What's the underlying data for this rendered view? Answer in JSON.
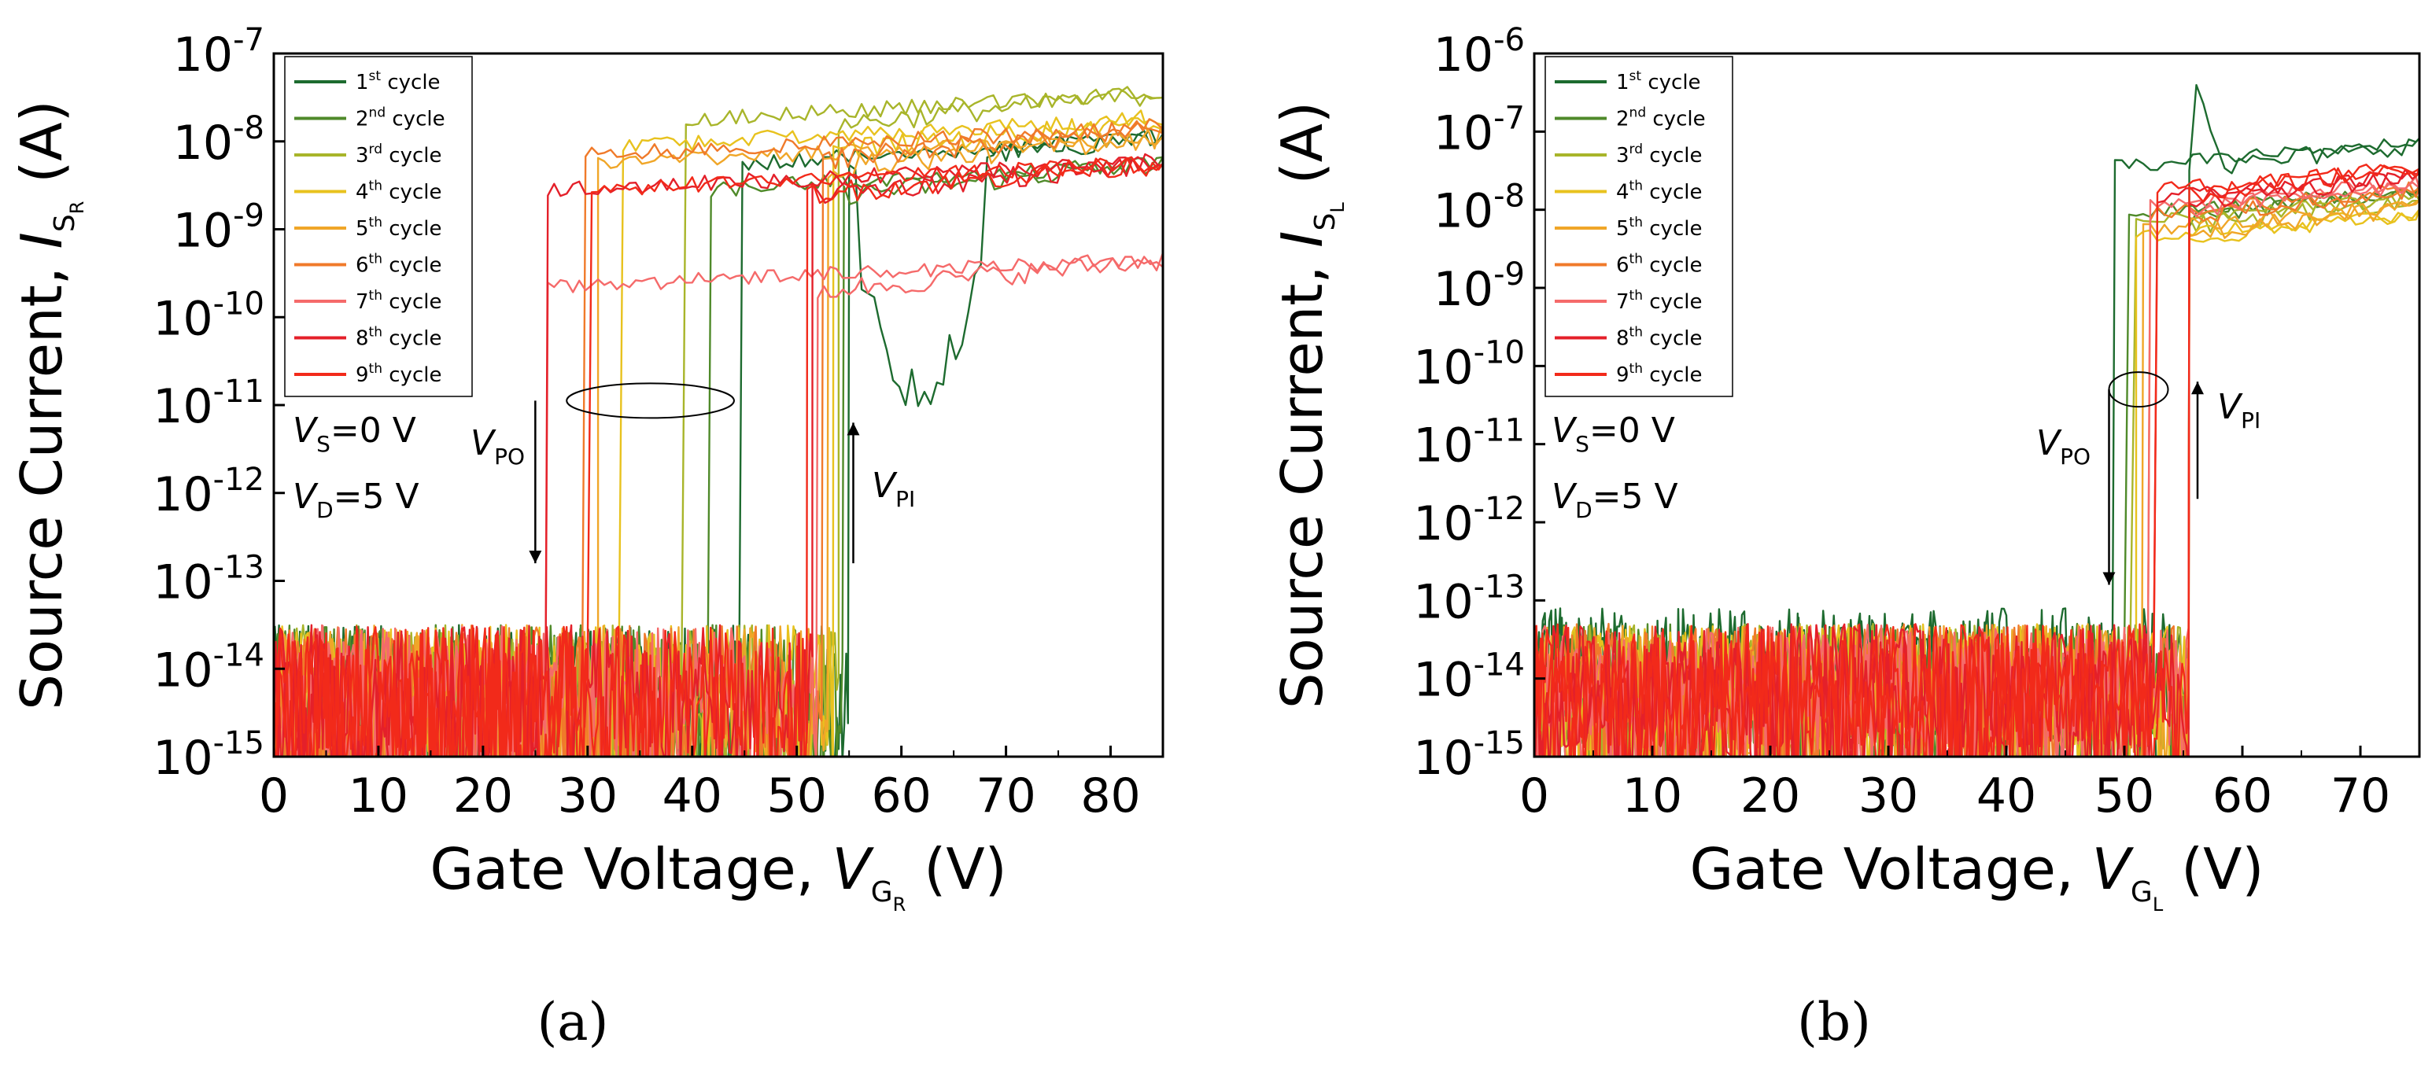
{
  "chart_data": [
    {
      "type": "line",
      "caption": "(a)",
      "ylabel": "Source Current, I_S_R (A)",
      "xlabel": "Gate Voltage, V_G_R (V)",
      "ylabel_parts": {
        "main": "Source Current, ",
        "var": "I",
        "sub": "S",
        "subsub": "R",
        "unit": " (A)"
      },
      "xlabel_parts": {
        "main": "Gate Voltage, ",
        "var": "V",
        "sub": "G",
        "subsub": "R",
        "unit": " (V)"
      },
      "y_scale": "log",
      "xlim": [
        0,
        85
      ],
      "ylim_exp": [
        -15,
        -7
      ],
      "xticks": [
        "0",
        "10",
        "20",
        "30",
        "40",
        "50",
        "60",
        "70",
        "80"
      ],
      "xtick_values": [
        0,
        10,
        20,
        30,
        40,
        50,
        60,
        70,
        80
      ],
      "yticks_exp": [
        "-15",
        "-14",
        "-13",
        "-12",
        "-11",
        "-10",
        "-9",
        "-8",
        "-7"
      ],
      "grid": false,
      "legend": "top-left",
      "annotations": {
        "vs": {
          "var": "V",
          "sub": "S",
          "text": "=0 V"
        },
        "vd": {
          "var": "V",
          "sub": "D",
          "text": "=5 V"
        },
        "vpo": {
          "var": "V",
          "sub": "PO"
        },
        "vpi": {
          "var": "V",
          "sub": "PI"
        }
      },
      "series": [
        {
          "name": "1st cycle",
          "sup": "st",
          "color": "#1d6b2f",
          "pull_out_v": 44.5,
          "pull_in_v": 55,
          "on_current_exp": -8.3,
          "off_current_exp": -13.5
        },
        {
          "name": "2nd cycle",
          "sup": "nd",
          "color": "#4f8a2a",
          "pull_out_v": 41.5,
          "pull_in_v": 54.5,
          "on_current_exp": -8.6,
          "off_current_exp": -13.5
        },
        {
          "name": "3rd cycle",
          "sup": "rd",
          "color": "#a8b52a",
          "pull_out_v": 39,
          "pull_in_v": 54,
          "on_current_exp": -7.8,
          "off_current_exp": -13.5
        },
        {
          "name": "4th cycle",
          "sup": "th",
          "color": "#e8c21e",
          "pull_out_v": 33,
          "pull_in_v": 53.5,
          "on_current_exp": -8.1,
          "off_current_exp": -13.5
        },
        {
          "name": "5th cycle",
          "sup": "th",
          "color": "#f0a628",
          "pull_out_v": 31,
          "pull_in_v": 53,
          "on_current_exp": -8.3,
          "off_current_exp": -13.5
        },
        {
          "name": "6th cycle",
          "sup": "th",
          "color": "#f07a2a",
          "pull_out_v": 29.5,
          "pull_in_v": 52.5,
          "on_current_exp": -8.2,
          "off_current_exp": -13.5
        },
        {
          "name": "7th cycle",
          "sup": "th",
          "color": "#f56a6a",
          "pull_out_v": 26,
          "pull_in_v": 52,
          "on_current_exp": -9.7,
          "off_current_exp": -13.5
        },
        {
          "name": "8th cycle",
          "sup": "th",
          "color": "#e4202a",
          "pull_out_v": 26,
          "pull_in_v": 51.5,
          "on_current_exp": -8.6,
          "off_current_exp": -13.5
        },
        {
          "name": "9th cycle",
          "sup": "th",
          "color": "#f22a1a",
          "pull_out_v": 30,
          "pull_in_v": 51,
          "on_current_exp": -8.6,
          "off_current_exp": -13.5
        }
      ]
    },
    {
      "type": "line",
      "caption": "(b)",
      "ylabel": "Source Current, I_S_L (A)",
      "xlabel": "Gate Voltage, V_G_L (V)",
      "ylabel_parts": {
        "main": "Source Current, ",
        "var": "I",
        "sub": "S",
        "subsub": "L",
        "unit": " (A)"
      },
      "xlabel_parts": {
        "main": "Gate Voltage, ",
        "var": "V",
        "sub": "G",
        "subsub": "L",
        "unit": " (V)"
      },
      "y_scale": "log",
      "xlim": [
        0,
        75
      ],
      "ylim_exp": [
        -15,
        -6
      ],
      "xticks": [
        "0",
        "10",
        "20",
        "30",
        "40",
        "50",
        "60",
        "70"
      ],
      "xtick_values": [
        0,
        10,
        20,
        30,
        40,
        50,
        60,
        70
      ],
      "yticks_exp": [
        "-15",
        "-14",
        "-13",
        "-12",
        "-11",
        "-10",
        "-9",
        "-8",
        "-7",
        "-6"
      ],
      "grid": false,
      "legend": "top-left",
      "annotations": {
        "vs": {
          "var": "V",
          "sub": "S",
          "text": "=0 V"
        },
        "vd": {
          "var": "V",
          "sub": "D",
          "text": "=5 V"
        },
        "vpo": {
          "var": "V",
          "sub": "PO"
        },
        "vpi": {
          "var": "V",
          "sub": "PI"
        }
      },
      "series": [
        {
          "name": "1st cycle",
          "sup": "st",
          "color": "#1d6b2f",
          "pull_out_v": 49,
          "pull_in_v": 55.5,
          "on_current_exp": -7.5,
          "off_current_exp": -13.1
        },
        {
          "name": "2nd cycle",
          "sup": "nd",
          "color": "#4f8a2a",
          "pull_out_v": 50,
          "pull_in_v": 55.5,
          "on_current_exp": -8.1,
          "off_current_exp": -13.3
        },
        {
          "name": "3rd cycle",
          "sup": "rd",
          "color": "#a8b52a",
          "pull_out_v": 50.5,
          "pull_in_v": 55.5,
          "on_current_exp": -8.2,
          "off_current_exp": -13.3
        },
        {
          "name": "4th cycle",
          "sup": "th",
          "color": "#e8c21e",
          "pull_out_v": 51,
          "pull_in_v": 55.5,
          "on_current_exp": -8.4,
          "off_current_exp": -13.3
        },
        {
          "name": "5th cycle",
          "sup": "th",
          "color": "#f0a628",
          "pull_out_v": 51.5,
          "pull_in_v": 55.5,
          "on_current_exp": -8.3,
          "off_current_exp": -13.3
        },
        {
          "name": "6th cycle",
          "sup": "th",
          "color": "#f07a2a",
          "pull_out_v": 52,
          "pull_in_v": 55.5,
          "on_current_exp": -8.1,
          "off_current_exp": -13.3
        },
        {
          "name": "7th cycle",
          "sup": "th",
          "color": "#f56a6a",
          "pull_out_v": 52,
          "pull_in_v": 55.5,
          "on_current_exp": -8.0,
          "off_current_exp": -13.3
        },
        {
          "name": "8th cycle",
          "sup": "th",
          "color": "#e4202a",
          "pull_out_v": 52.5,
          "pull_in_v": 55.5,
          "on_current_exp": -7.9,
          "off_current_exp": -13.3
        },
        {
          "name": "9th cycle",
          "sup": "th",
          "color": "#f22a1a",
          "pull_out_v": 52.5,
          "pull_in_v": 55.5,
          "on_current_exp": -7.8,
          "off_current_exp": -13.3
        }
      ]
    }
  ]
}
